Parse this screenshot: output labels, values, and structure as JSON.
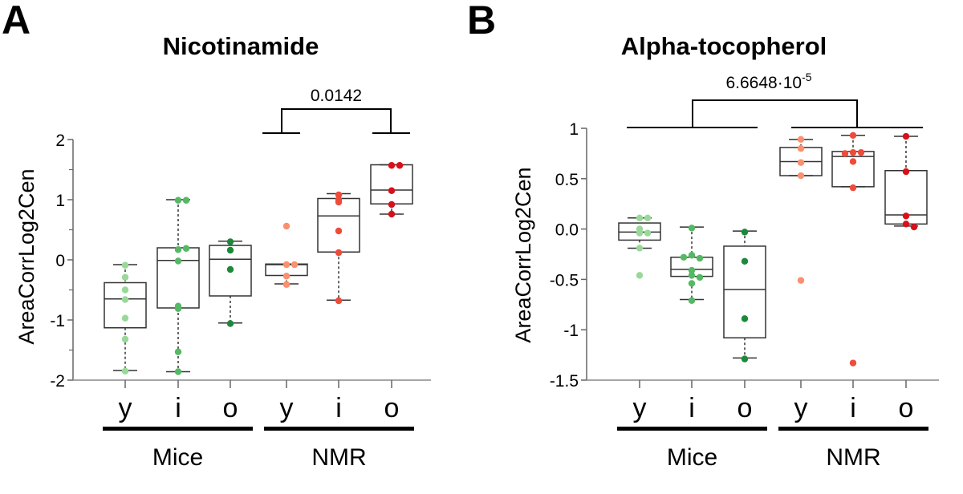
{
  "chart_data": [
    {
      "panel": "A",
      "type": "box",
      "title": "Nicotinamide",
      "ylabel": "AreaCorrLog2Cen",
      "ylim": [
        -2,
        2
      ],
      "yticks": [
        "2",
        "1",
        "0",
        "-1",
        "-2"
      ],
      "yticks_values": [
        2,
        1,
        0,
        -1,
        -2
      ],
      "categories": [
        "y",
        "i",
        "o",
        "y",
        "i",
        "o"
      ],
      "groups": [
        {
          "label": "Mice",
          "categories": [
            0,
            1,
            2
          ]
        },
        {
          "label": "NMR",
          "categories": [
            3,
            4,
            5
          ]
        }
      ],
      "significance": {
        "label": "0.0142",
        "from": 3,
        "to": 5
      },
      "colors": [
        "#9ad89a",
        "#55b865",
        "#1a8a3a",
        "#f9906f",
        "#ef4b3a",
        "#d7111a"
      ],
      "boxes": [
        {
          "whisker_low": -1.84,
          "q1": -1.13,
          "median": -0.65,
          "q3": -0.38,
          "whisker_high": -0.08,
          "points": [
            -0.09,
            -0.29,
            -0.5,
            -0.66,
            -0.97,
            -1.32,
            -1.85
          ]
        },
        {
          "whisker_low": -1.86,
          "q1": -0.8,
          "median": -0.01,
          "q3": 0.2,
          "whisker_high": 1.0,
          "points": [
            0.99,
            0.99,
            0.17,
            0.19,
            -0.02,
            -0.81,
            -0.77,
            -1.53,
            -1.86
          ]
        },
        {
          "whisker_low": -1.05,
          "q1": -0.6,
          "median": 0.01,
          "q3": 0.24,
          "whisker_high": 0.31,
          "points": [
            0.3,
            0.16,
            -0.16,
            -1.06
          ]
        },
        {
          "whisker_low": -0.4,
          "q1": -0.26,
          "median": -0.08,
          "q3": -0.07,
          "whisker_high": -0.07,
          "points": [
            0.56,
            -0.08,
            -0.08,
            -0.27,
            -0.41
          ]
        },
        {
          "whisker_low": -0.67,
          "q1": 0.13,
          "median": 0.73,
          "q3": 1.02,
          "whisker_high": 1.1,
          "points": [
            1.08,
            0.96,
            1.0,
            0.48,
            0.12,
            -0.68
          ]
        },
        {
          "whisker_low": 0.76,
          "q1": 0.93,
          "median": 1.16,
          "q3": 1.58,
          "whisker_high": 1.58,
          "points": [
            1.57,
            1.57,
            1.15,
            0.92,
            0.76
          ]
        }
      ]
    },
    {
      "panel": "B",
      "type": "box",
      "title": "Alpha-tocopherol",
      "ylabel": "AreaCorrLog2Cen",
      "ylim": [
        -1.5,
        1
      ],
      "yticks": [
        "1",
        "0.5",
        "0.0",
        "-0.5",
        "-1",
        "-1.5"
      ],
      "yticks_values": [
        1,
        0.5,
        0,
        -0.5,
        -1,
        -1.5
      ],
      "categories": [
        "y",
        "i",
        "o",
        "y",
        "i",
        "o"
      ],
      "groups": [
        {
          "label": "Mice",
          "categories": [
            0,
            1,
            2
          ]
        },
        {
          "label": "NMR",
          "categories": [
            3,
            4,
            5
          ]
        }
      ],
      "significance": {
        "label_mantissa": "6.6648·10",
        "label_exponent": "-5",
        "from_group": "Mice",
        "to_group": "NMR"
      },
      "colors": [
        "#9ad89a",
        "#55b865",
        "#1a8a3a",
        "#f9906f",
        "#ef4b3a",
        "#d7111a"
      ],
      "boxes": [
        {
          "whisker_low": -0.19,
          "q1": -0.11,
          "median": -0.03,
          "q3": 0.06,
          "whisker_high": 0.11,
          "points": [
            0.11,
            0.11,
            0.0,
            -0.04,
            -0.04,
            -0.19,
            -0.46
          ]
        },
        {
          "whisker_low": -0.7,
          "q1": -0.47,
          "median": -0.4,
          "q3": -0.28,
          "whisker_high": 0.02,
          "points": [
            0.01,
            -0.26,
            -0.29,
            -0.28,
            -0.41,
            -0.46,
            -0.48,
            -0.54,
            -0.71
          ]
        },
        {
          "whisker_low": -1.28,
          "q1": -1.08,
          "median": -0.6,
          "q3": -0.17,
          "whisker_high": -0.02,
          "points": [
            -0.03,
            -0.32,
            -0.89,
            -1.29
          ]
        },
        {
          "whisker_low": 0.53,
          "q1": 0.53,
          "median": 0.67,
          "q3": 0.81,
          "whisker_high": 0.89,
          "points": [
            0.89,
            0.8,
            0.66,
            0.53,
            -0.51
          ]
        },
        {
          "whisker_low": 0.42,
          "q1": 0.42,
          "median": 0.72,
          "q3": 0.77,
          "whisker_high": 0.93,
          "points": [
            0.93,
            0.76,
            0.76,
            0.75,
            0.67,
            0.41,
            -1.33
          ]
        },
        {
          "whisker_low": 0.03,
          "q1": 0.05,
          "median": 0.14,
          "q3": 0.58,
          "whisker_high": 0.92,
          "points": [
            0.92,
            0.57,
            0.13,
            0.05,
            0.02
          ]
        }
      ]
    }
  ]
}
